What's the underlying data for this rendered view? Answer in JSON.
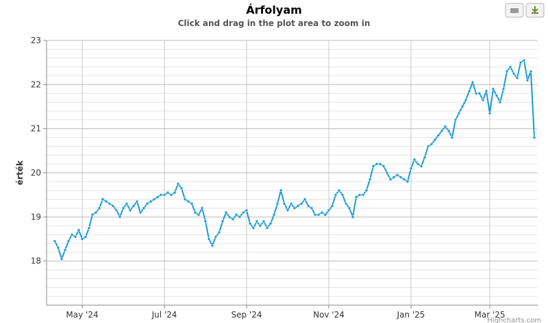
{
  "chart_data": {
    "type": "line",
    "title": "Árfolyam",
    "subtitle": "Click and drag in the plot area to zoom in",
    "y_label": "érték",
    "credits": "Highcharts.com",
    "categories": [
      null,
      null,
      null,
      null,
      null,
      null,
      null,
      null,
      "May '24",
      null,
      null,
      null,
      null,
      null,
      null,
      null,
      null,
      null,
      null,
      null,
      null,
      null,
      null,
      null,
      null,
      null,
      null,
      null,
      null,
      null,
      null,
      null,
      "Jul '24",
      null,
      null,
      null,
      null,
      null,
      null,
      null,
      null,
      null,
      null,
      null,
      null,
      null,
      null,
      null,
      null,
      null,
      null,
      null,
      null,
      null,
      null,
      null,
      "Sep '24",
      null,
      null,
      null,
      null,
      null,
      null,
      null,
      null,
      null,
      null,
      null,
      null,
      null,
      null,
      null,
      null,
      null,
      null,
      null,
      null,
      null,
      null,
      null,
      "Nov '24",
      null,
      null,
      null,
      null,
      null,
      null,
      null,
      null,
      null,
      null,
      null,
      null,
      null,
      null,
      null,
      null,
      null,
      null,
      null,
      null,
      null,
      null,
      null,
      "Jan '25",
      null,
      null,
      null,
      null,
      null,
      null,
      null,
      null,
      null,
      null,
      null,
      null,
      null,
      null,
      null,
      null,
      null,
      null,
      null,
      null,
      null,
      null,
      "Mar '25",
      null,
      null,
      null,
      null,
      null,
      null,
      null,
      null,
      null,
      null,
      null,
      null,
      null
    ],
    "values": [
      18.45,
      18.3,
      18.05,
      18.25,
      18.45,
      18.6,
      18.55,
      18.7,
      18.5,
      18.55,
      18.75,
      19.05,
      19.1,
      19.2,
      19.4,
      19.35,
      19.3,
      19.25,
      19.15,
      19.0,
      19.2,
      19.3,
      19.15,
      19.25,
      19.35,
      19.1,
      19.2,
      19.3,
      19.35,
      19.4,
      19.45,
      19.5,
      19.5,
      19.55,
      19.5,
      19.55,
      19.75,
      19.65,
      19.4,
      19.35,
      19.3,
      19.1,
      19.05,
      19.2,
      18.9,
      18.5,
      18.35,
      18.55,
      18.65,
      18.9,
      19.1,
      19.0,
      18.95,
      19.05,
      19.0,
      19.1,
      19.15,
      18.85,
      18.75,
      18.9,
      18.8,
      18.9,
      18.75,
      18.85,
      19.05,
      19.3,
      19.6,
      19.3,
      19.15,
      19.3,
      19.2,
      19.25,
      19.3,
      19.4,
      19.25,
      19.2,
      19.05,
      19.05,
      19.1,
      19.05,
      19.15,
      19.25,
      19.5,
      19.6,
      19.5,
      19.3,
      19.2,
      19.0,
      19.45,
      19.5,
      19.5,
      19.6,
      19.85,
      20.15,
      20.2,
      20.2,
      20.15,
      20.0,
      19.85,
      19.9,
      19.95,
      19.9,
      19.85,
      19.8,
      20.1,
      20.3,
      20.2,
      20.15,
      20.35,
      20.6,
      20.65,
      20.75,
      20.85,
      20.95,
      21.05,
      20.95,
      20.8,
      21.2,
      21.35,
      21.5,
      21.65,
      21.85,
      22.05,
      21.8,
      21.8,
      21.65,
      21.85,
      21.35,
      21.9,
      21.75,
      21.6,
      21.9,
      22.3,
      22.4,
      22.25,
      22.15,
      22.5,
      22.55,
      22.1,
      22.3,
      20.8
    ],
    "color": "#1a9ad6",
    "ylim": [
      17,
      23
    ],
    "yticks": [
      18,
      19,
      20,
      21,
      22,
      23
    ],
    "grid": true,
    "minor_grid": true
  }
}
